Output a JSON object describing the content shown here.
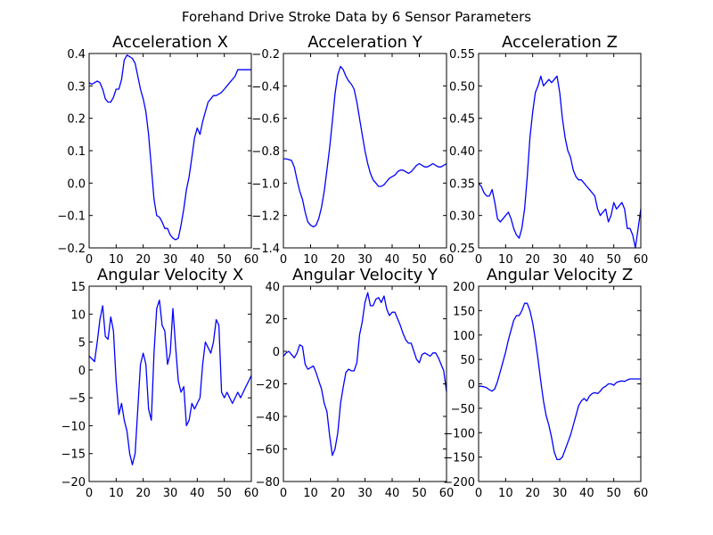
{
  "figure": {
    "suptitle": "Forehand Drive Stroke Data by 6 Sensor Parameters",
    "line_color": "#0000ff"
  },
  "chart_data": [
    {
      "type": "line",
      "title": "Acceleration X",
      "xlim": [
        0,
        60
      ],
      "ylim": [
        -0.2,
        0.4
      ],
      "xticks": [
        0,
        10,
        20,
        30,
        40,
        50,
        60
      ],
      "xtick_labels": [
        "0",
        "10",
        "20",
        "30",
        "40",
        "50",
        "60"
      ],
      "yticks": [
        -0.2,
        -0.1,
        0.0,
        0.1,
        0.2,
        0.3,
        0.4
      ],
      "ytick_labels": [
        "−0.2",
        "−0.1",
        "0.0",
        "0.1",
        "0.2",
        "0.3",
        "0.4"
      ],
      "series": [
        {
          "x": [
            0,
            1,
            2,
            3,
            4,
            5,
            6,
            7,
            8,
            9,
            10,
            11,
            12,
            13,
            14,
            15,
            16,
            17,
            18,
            19,
            20,
            21,
            22,
            23,
            24,
            25,
            26,
            27,
            28,
            29,
            30,
            31,
            32,
            33,
            34,
            35,
            36,
            37,
            38,
            39,
            40,
            41,
            42,
            43,
            44,
            45,
            46,
            47,
            48,
            49,
            50,
            51,
            52,
            53,
            54,
            55,
            56,
            57,
            58,
            59,
            60
          ],
          "y": [
            0.31,
            0.305,
            0.31,
            0.315,
            0.31,
            0.29,
            0.26,
            0.25,
            0.25,
            0.265,
            0.29,
            0.29,
            0.32,
            0.38,
            0.395,
            0.39,
            0.385,
            0.37,
            0.33,
            0.29,
            0.26,
            0.22,
            0.15,
            0.05,
            -0.05,
            -0.1,
            -0.105,
            -0.12,
            -0.14,
            -0.14,
            -0.16,
            -0.17,
            -0.175,
            -0.17,
            -0.13,
            -0.08,
            -0.02,
            0.02,
            0.08,
            0.14,
            0.17,
            0.15,
            0.19,
            0.22,
            0.25,
            0.26,
            0.27,
            0.27,
            0.275,
            0.28,
            0.29,
            0.3,
            0.31,
            0.32,
            0.33,
            0.35,
            0.35,
            0.35,
            0.35,
            0.35,
            0.35
          ]
        }
      ]
    },
    {
      "type": "line",
      "title": "Acceleration Y",
      "xlim": [
        0,
        60
      ],
      "ylim": [
        -1.4,
        -0.2
      ],
      "xticks": [
        0,
        10,
        20,
        30,
        40,
        50,
        60
      ],
      "xtick_labels": [
        "0",
        "10",
        "20",
        "30",
        "40",
        "50",
        "60"
      ],
      "yticks": [
        -1.4,
        -1.2,
        -1.0,
        -0.8,
        -0.6,
        -0.4,
        -0.2
      ],
      "ytick_labels": [
        "−1.4",
        "−1.2",
        "−1.0",
        "−0.8",
        "−0.6",
        "−0.4",
        "−0.2"
      ],
      "series": [
        {
          "x": [
            0,
            1,
            2,
            3,
            4,
            5,
            6,
            7,
            8,
            9,
            10,
            11,
            12,
            13,
            14,
            15,
            16,
            17,
            18,
            19,
            20,
            21,
            22,
            23,
            24,
            25,
            26,
            27,
            28,
            29,
            30,
            31,
            32,
            33,
            34,
            35,
            36,
            37,
            38,
            39,
            40,
            41,
            42,
            43,
            44,
            45,
            46,
            47,
            48,
            49,
            50,
            51,
            52,
            53,
            54,
            55,
            56,
            57,
            58,
            59,
            60
          ],
          "y": [
            -0.85,
            -0.85,
            -0.855,
            -0.86,
            -0.9,
            -0.98,
            -1.05,
            -1.1,
            -1.18,
            -1.24,
            -1.26,
            -1.27,
            -1.26,
            -1.22,
            -1.15,
            -1.05,
            -0.92,
            -0.78,
            -0.62,
            -0.45,
            -0.33,
            -0.28,
            -0.3,
            -0.34,
            -0.37,
            -0.39,
            -0.42,
            -0.5,
            -0.6,
            -0.7,
            -0.8,
            -0.88,
            -0.94,
            -0.98,
            -1.0,
            -1.02,
            -1.02,
            -1.01,
            -0.99,
            -0.97,
            -0.96,
            -0.95,
            -0.93,
            -0.92,
            -0.92,
            -0.93,
            -0.94,
            -0.93,
            -0.91,
            -0.89,
            -0.88,
            -0.89,
            -0.9,
            -0.9,
            -0.89,
            -0.88,
            -0.89,
            -0.9,
            -0.9,
            -0.89,
            -0.88
          ]
        }
      ]
    },
    {
      "type": "line",
      "title": "Acceleration Z",
      "xlim": [
        0,
        60
      ],
      "ylim": [
        0.25,
        0.55
      ],
      "xticks": [
        0,
        10,
        20,
        30,
        40,
        50,
        60
      ],
      "xtick_labels": [
        "0",
        "10",
        "20",
        "30",
        "40",
        "50",
        "60"
      ],
      "yticks": [
        0.25,
        0.3,
        0.35,
        0.4,
        0.45,
        0.5,
        0.55
      ],
      "ytick_labels": [
        "0.25",
        "0.30",
        "0.35",
        "0.40",
        "0.45",
        "0.50",
        "0.55"
      ],
      "series": [
        {
          "x": [
            0,
            1,
            2,
            3,
            4,
            5,
            6,
            7,
            8,
            9,
            10,
            11,
            12,
            13,
            14,
            15,
            16,
            17,
            18,
            19,
            20,
            21,
            22,
            23,
            24,
            25,
            26,
            27,
            28,
            29,
            30,
            31,
            32,
            33,
            34,
            35,
            36,
            37,
            38,
            39,
            40,
            41,
            42,
            43,
            44,
            45,
            46,
            47,
            48,
            49,
            50,
            51,
            52,
            53,
            54,
            55,
            56,
            57,
            58,
            59,
            60
          ],
          "y": [
            0.35,
            0.345,
            0.335,
            0.33,
            0.33,
            0.34,
            0.32,
            0.295,
            0.29,
            0.295,
            0.3,
            0.305,
            0.295,
            0.28,
            0.27,
            0.265,
            0.28,
            0.31,
            0.36,
            0.42,
            0.46,
            0.49,
            0.5,
            0.515,
            0.5,
            0.505,
            0.51,
            0.505,
            0.51,
            0.515,
            0.49,
            0.45,
            0.42,
            0.4,
            0.39,
            0.37,
            0.36,
            0.355,
            0.355,
            0.35,
            0.345,
            0.34,
            0.335,
            0.33,
            0.31,
            0.3,
            0.305,
            0.31,
            0.29,
            0.3,
            0.32,
            0.31,
            0.315,
            0.32,
            0.31,
            0.28,
            0.28,
            0.27,
            0.25,
            0.28,
            0.31
          ]
        }
      ]
    },
    {
      "type": "line",
      "title": "Angular Velocity X",
      "xlim": [
        0,
        60
      ],
      "ylim": [
        -20,
        15
      ],
      "xticks": [
        0,
        10,
        20,
        30,
        40,
        50,
        60
      ],
      "xtick_labels": [
        "0",
        "10",
        "20",
        "30",
        "40",
        "50",
        "60"
      ],
      "yticks": [
        -20,
        -15,
        -10,
        -5,
        0,
        5,
        10,
        15
      ],
      "ytick_labels": [
        "−20",
        "−15",
        "−10",
        "−5",
        "0",
        "5",
        "10",
        "15"
      ],
      "series": [
        {
          "x": [
            0,
            1,
            2,
            3,
            4,
            5,
            6,
            7,
            8,
            9,
            10,
            11,
            12,
            13,
            14,
            15,
            16,
            17,
            18,
            19,
            20,
            21,
            22,
            23,
            24,
            25,
            26,
            27,
            28,
            29,
            30,
            31,
            32,
            33,
            34,
            35,
            36,
            37,
            38,
            39,
            40,
            41,
            42,
            43,
            44,
            45,
            46,
            47,
            48,
            49,
            50,
            51,
            52,
            53,
            54,
            55,
            56,
            57,
            58,
            59,
            60
          ],
          "y": [
            2.5,
            2,
            1.5,
            5,
            9,
            11.5,
            6,
            5.5,
            9.5,
            7,
            -2,
            -8,
            -6,
            -9,
            -11,
            -15,
            -17,
            -15,
            -7,
            1,
            3,
            1,
            -7,
            -9,
            3,
            11,
            12.5,
            8,
            7,
            1,
            3,
            11,
            4,
            -2,
            -4,
            -3,
            -10,
            -9,
            -6,
            -7,
            -6,
            -5,
            1,
            5,
            4,
            3,
            5,
            9,
            8,
            -4,
            -5,
            -4,
            -5,
            -6,
            -5,
            -4,
            -5,
            -4,
            -3,
            -2,
            -1
          ]
        }
      ]
    },
    {
      "type": "line",
      "title": "Angular Velocity Y",
      "xlim": [
        0,
        60
      ],
      "ylim": [
        -80,
        40
      ],
      "xticks": [
        0,
        10,
        20,
        30,
        40,
        50,
        60
      ],
      "xtick_labels": [
        "0",
        "10",
        "20",
        "30",
        "40",
        "50",
        "60"
      ],
      "yticks": [
        -80,
        -60,
        -40,
        -20,
        0,
        20,
        40
      ],
      "ytick_labels": [
        "−80",
        "−60",
        "−40",
        "−20",
        "0",
        "20",
        "40"
      ],
      "series": [
        {
          "x": [
            0,
            1,
            2,
            3,
            4,
            5,
            6,
            7,
            8,
            9,
            10,
            11,
            12,
            13,
            14,
            15,
            16,
            17,
            18,
            19,
            20,
            21,
            22,
            23,
            24,
            25,
            26,
            27,
            28,
            29,
            30,
            31,
            32,
            33,
            34,
            35,
            36,
            37,
            38,
            39,
            40,
            41,
            42,
            43,
            44,
            45,
            46,
            47,
            48,
            49,
            50,
            51,
            52,
            53,
            54,
            55,
            56,
            57,
            58,
            59,
            60
          ],
          "y": [
            -3,
            -1,
            0,
            -2,
            -4,
            -1,
            4,
            3,
            -8,
            -11,
            -10,
            -9,
            -13,
            -18,
            -23,
            -32,
            -37,
            -52,
            -64,
            -60,
            -50,
            -32,
            -22,
            -13,
            -11,
            -12,
            -12,
            -7,
            10,
            18,
            30,
            36,
            28,
            28,
            32,
            33,
            30,
            34,
            26,
            22,
            24,
            24,
            20,
            16,
            11,
            7,
            5,
            5,
            0,
            -5,
            -7,
            -2,
            -1,
            -2,
            -3,
            -1,
            -1,
            -4,
            -8,
            -12,
            -25
          ]
        }
      ]
    },
    {
      "type": "line",
      "title": "Angular Velocity Z",
      "xlim": [
        0,
        60
      ],
      "ylim": [
        -200,
        200
      ],
      "xticks": [
        0,
        10,
        20,
        30,
        40,
        50,
        60
      ],
      "xtick_labels": [
        "0",
        "10",
        "20",
        "30",
        "40",
        "50",
        "60"
      ],
      "yticks": [
        -200,
        -150,
        -100,
        -50,
        0,
        50,
        100,
        150,
        200
      ],
      "ytick_labels": [
        "−200",
        "−150",
        "−100",
        "−50",
        "0",
        "50",
        "100",
        "150",
        "200"
      ],
      "series": [
        {
          "x": [
            0,
            1,
            2,
            3,
            4,
            5,
            6,
            7,
            8,
            9,
            10,
            11,
            12,
            13,
            14,
            15,
            16,
            17,
            18,
            19,
            20,
            21,
            22,
            23,
            24,
            25,
            26,
            27,
            28,
            29,
            30,
            31,
            32,
            33,
            34,
            35,
            36,
            37,
            38,
            39,
            40,
            41,
            42,
            43,
            44,
            45,
            46,
            47,
            48,
            49,
            50,
            51,
            52,
            53,
            54,
            55,
            56,
            57,
            58,
            59,
            60
          ],
          "y": [
            -5,
            -5,
            -6,
            -8,
            -12,
            -15,
            -10,
            5,
            25,
            45,
            65,
            90,
            110,
            130,
            140,
            140,
            150,
            165,
            165,
            150,
            125,
            90,
            50,
            5,
            -35,
            -65,
            -85,
            -110,
            -140,
            -155,
            -155,
            -150,
            -135,
            -120,
            -105,
            -85,
            -65,
            -45,
            -35,
            -30,
            -35,
            -25,
            -20,
            -18,
            -20,
            -15,
            -8,
            -5,
            0,
            0,
            -3,
            3,
            5,
            6,
            5,
            8,
            10,
            10,
            10,
            10,
            10
          ]
        }
      ]
    }
  ]
}
